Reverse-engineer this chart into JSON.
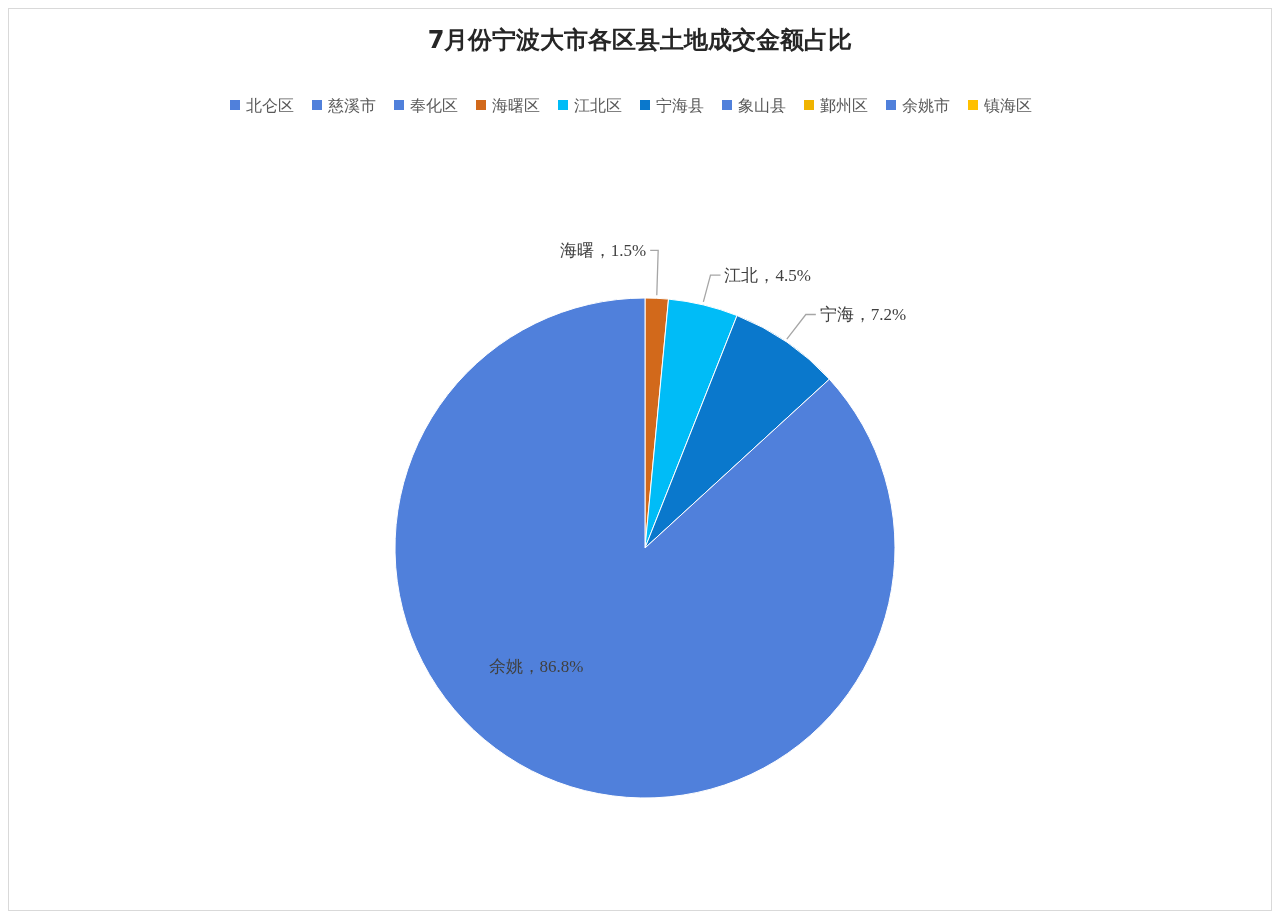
{
  "chart_data": {
    "type": "pie",
    "title": "7月份宁波大市各区县土地成交金额占比",
    "categories": [
      "北仑区",
      "慈溪市",
      "奉化区",
      "海曙区",
      "江北区",
      "宁海县",
      "象山县",
      "鄞州区",
      "余姚市",
      "镇海区"
    ],
    "values": [
      0,
      0,
      0,
      1.5,
      4.5,
      7.2,
      0,
      0,
      86.8,
      0
    ],
    "colors": [
      "#5080db",
      "#5080db",
      "#5080db",
      "#d2691b",
      "#00bcf7",
      "#0a78cc",
      "#5080db",
      "#f0b400",
      "#5080db",
      "#ffc000"
    ],
    "value_labels": [
      null,
      null,
      null,
      "海曙，1.5%",
      "江北，4.5%",
      "宁海，7.2%",
      null,
      null,
      "余姚，86.8%",
      null
    ],
    "legend": "top"
  }
}
